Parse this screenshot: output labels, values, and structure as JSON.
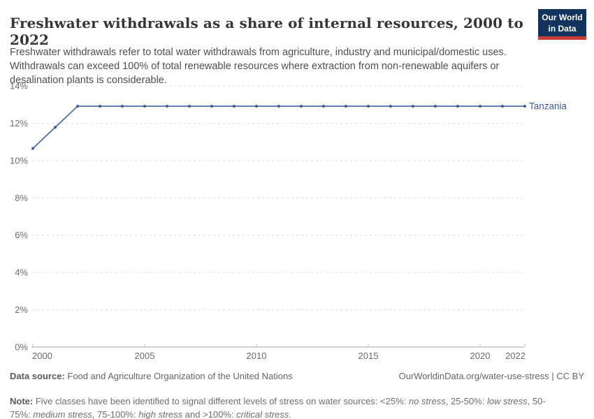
{
  "header": {
    "title": "Freshwater withdrawals as a share of internal resources, 2000 to 2022",
    "subtitle": "Freshwater withdrawals refer to total water withdrawals from agriculture, industry and municipal/domestic uses. Withdrawals can exceed 100% of total renewable resources where extraction from non-renewable aquifers or desalination plants is considerable.",
    "logo": {
      "line1": "Our World",
      "line2": "in Data"
    }
  },
  "colors": {
    "line": "#4c6fae",
    "marker": "#3a5a9c",
    "entity_label": "#3d5c9e",
    "grid": "#d9d9d9",
    "axis": "#a3a3a3",
    "tick": "#c2c2c2",
    "logo_bg": "#12335c",
    "logo_red": "#c53e36"
  },
  "chart_data": {
    "type": "line",
    "title": "Freshwater withdrawals as a share of internal resources, 2000 to 2022",
    "xlabel": "",
    "ylabel": "",
    "ylim": [
      0,
      14
    ],
    "yticks": [
      0,
      2,
      4,
      6,
      8,
      10,
      12,
      14
    ],
    "ytick_suffix": "%",
    "xticks": [
      2000,
      2005,
      2010,
      2015,
      2020,
      2022
    ],
    "grid": "horizontal-dashed",
    "legend": "end-of-line-label",
    "series": [
      {
        "name": "Tanzania",
        "x": [
          2000,
          2001,
          2002,
          2003,
          2004,
          2005,
          2006,
          2007,
          2008,
          2009,
          2010,
          2011,
          2012,
          2013,
          2014,
          2015,
          2016,
          2017,
          2018,
          2019,
          2020,
          2021,
          2022
        ],
        "values": [
          10.65,
          11.78,
          12.91,
          12.91,
          12.91,
          12.91,
          12.91,
          12.91,
          12.91,
          12.91,
          12.91,
          12.91,
          12.91,
          12.91,
          12.91,
          12.91,
          12.91,
          12.91,
          12.91,
          12.91,
          12.91,
          12.91,
          12.91
        ]
      }
    ]
  },
  "footer": {
    "data_source_label": "Data source:",
    "data_source": "Food and Agriculture Organization of the United Nations",
    "link": "OurWorldinData.org/water-use-stress | CC BY",
    "note_label": "Note:",
    "note_segments": [
      {
        "text": "Five classes have been identified to signal different levels of stress on water sources: <25%: ",
        "italic": false
      },
      {
        "text": "no stress",
        "italic": true
      },
      {
        "text": ", 25-50%: ",
        "italic": false
      },
      {
        "text": "low stress",
        "italic": true
      },
      {
        "text": ", 50-75%: ",
        "italic": false
      },
      {
        "text": "medium stress",
        "italic": true
      },
      {
        "text": ", 75-100%: ",
        "italic": false
      },
      {
        "text": "high stress",
        "italic": true
      },
      {
        "text": " and >100%: ",
        "italic": false
      },
      {
        "text": "critical stress",
        "italic": true
      },
      {
        "text": ".",
        "italic": false
      }
    ]
  }
}
